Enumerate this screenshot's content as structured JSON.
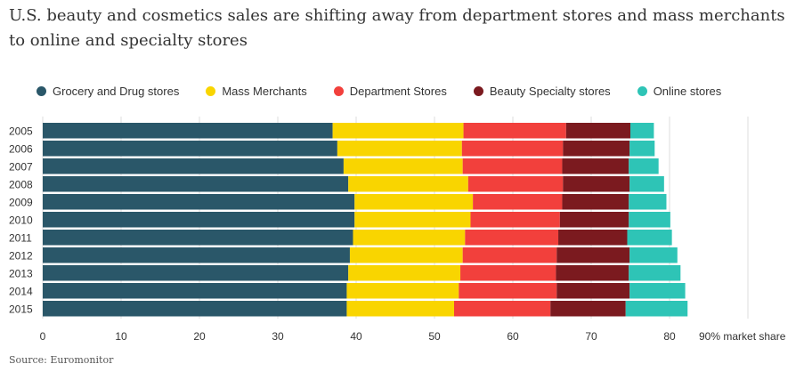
{
  "title": "U.S. beauty and cosmetics sales are shifting away from department stores and mass merchants to online and specialty stores",
  "source": "Source: Euromonitor",
  "colors": {
    "grocery": "#2a5769",
    "mass": "#f9d500",
    "department": "#f2403c",
    "beauty": "#7b1a1f",
    "online": "#2ec4b6",
    "grid": "#dddddd",
    "text": "#333333"
  },
  "chart_data": {
    "type": "bar",
    "orientation": "horizontal",
    "stacked": true,
    "title": "U.S. beauty and cosmetics sales are shifting away from department stores and mass merchants to online and specialty stores",
    "xlabel": "90% market share",
    "xlim": [
      0,
      90
    ],
    "xticks": [
      "0",
      "10",
      "20",
      "30",
      "40",
      "50",
      "60",
      "70",
      "80",
      "90% market share"
    ],
    "grid": true,
    "legend_position": "top",
    "categories": [
      "2005",
      "2006",
      "2007",
      "2008",
      "2009",
      "2010",
      "2011",
      "2012",
      "2013",
      "2014",
      "2015"
    ],
    "series": [
      {
        "name": "Grocery and Drug stores",
        "color_key": "grocery",
        "values": [
          37.0,
          37.6,
          38.4,
          39.0,
          39.8,
          39.8,
          39.6,
          39.2,
          39.0,
          38.8,
          38.8
        ]
      },
      {
        "name": "Mass Merchants",
        "color_key": "mass",
        "values": [
          16.7,
          15.9,
          15.2,
          15.3,
          15.1,
          14.8,
          14.3,
          14.4,
          14.3,
          14.3,
          13.7
        ]
      },
      {
        "name": "Department Stores",
        "color_key": "department",
        "values": [
          13.1,
          12.9,
          12.7,
          12.1,
          11.4,
          11.4,
          11.9,
          12.0,
          12.2,
          12.5,
          12.3
        ]
      },
      {
        "name": "Beauty Specialty stores",
        "color_key": "beauty",
        "values": [
          8.2,
          8.5,
          8.5,
          8.5,
          8.5,
          8.8,
          8.8,
          9.3,
          9.3,
          9.3,
          9.6
        ]
      },
      {
        "name": "Online stores",
        "color_key": "online",
        "values": [
          3.0,
          3.2,
          3.8,
          4.4,
          4.8,
          5.3,
          5.7,
          6.1,
          6.6,
          7.1,
          7.9
        ]
      }
    ]
  }
}
